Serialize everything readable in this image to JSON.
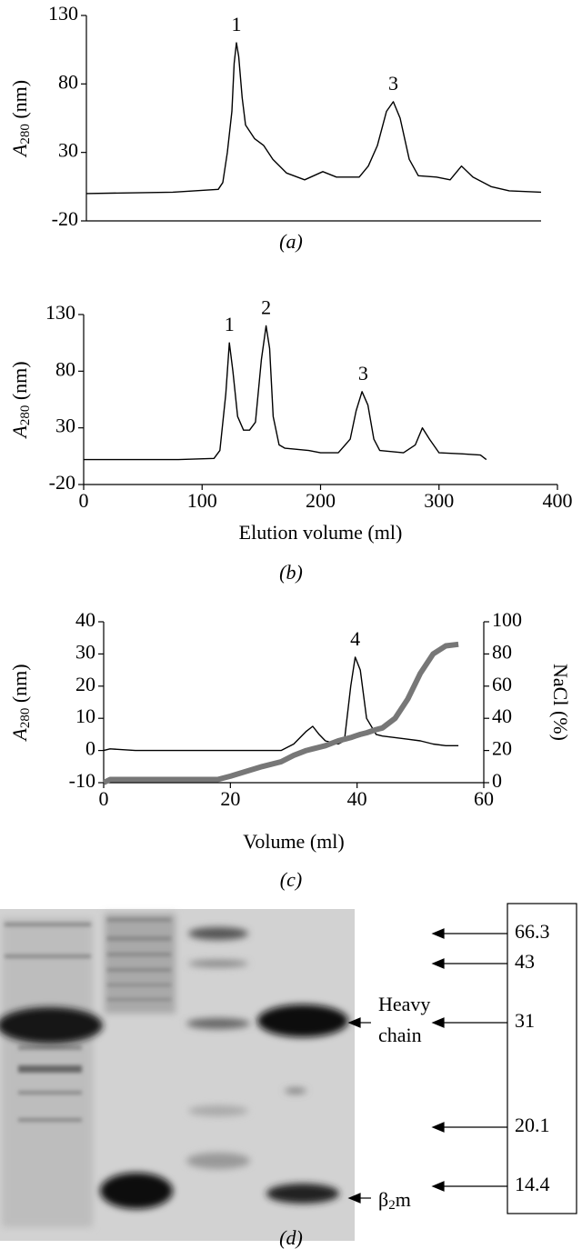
{
  "chart_data": [
    {
      "type": "line",
      "caption": "(a)",
      "y_label": [
        "A",
        "280",
        " (nm)"
      ],
      "xlim": [
        0,
        400
      ],
      "ylim": [
        -20,
        130
      ],
      "yticks": [
        -20,
        30,
        80,
        130
      ],
      "x": [
        0,
        76,
        116,
        120,
        124,
        128,
        130,
        132,
        134,
        137,
        140,
        148,
        156,
        164,
        176,
        192,
        208,
        220,
        240,
        248,
        256,
        264,
        270,
        276,
        284,
        292,
        308,
        320,
        330,
        340,
        356,
        372,
        400
      ],
      "series": [
        {
          "color": "#000000",
          "values": [
            0,
            1,
            3,
            8,
            30,
            60,
            95,
            110,
            100,
            70,
            50,
            40,
            35,
            25,
            15,
            10,
            16,
            12,
            12,
            20,
            35,
            60,
            67,
            55,
            25,
            13,
            12,
            10,
            20,
            12,
            5,
            2,
            1
          ]
        }
      ],
      "annotations": [
        {
          "text": "1",
          "x": 132,
          "y": 110
        },
        {
          "text": "3",
          "x": 270,
          "y": 67
        }
      ]
    },
    {
      "type": "line",
      "caption": "(b)",
      "y_label": [
        "A",
        "280",
        " (nm)"
      ],
      "x_label": "Elution volume (ml)",
      "xlim": [
        0,
        400
      ],
      "xticks": [
        0,
        100,
        200,
        300,
        400
      ],
      "ylim": [
        -20,
        130
      ],
      "yticks": [
        -20,
        30,
        80,
        130
      ],
      "x": [
        0,
        80,
        110,
        115,
        120,
        123,
        126,
        130,
        135,
        140,
        145,
        150,
        154,
        157,
        160,
        165,
        170,
        190,
        200,
        215,
        225,
        230,
        235,
        240,
        245,
        250,
        270,
        280,
        286,
        292,
        300,
        320,
        335,
        340
      ],
      "series": [
        {
          "color": "#000000",
          "values": [
            2,
            2,
            3,
            10,
            60,
            105,
            80,
            40,
            28,
            28,
            35,
            90,
            120,
            100,
            40,
            15,
            12,
            10,
            8,
            8,
            20,
            45,
            62,
            50,
            20,
            10,
            8,
            15,
            30,
            20,
            8,
            7,
            6,
            2
          ]
        }
      ],
      "annotations": [
        {
          "text": "1",
          "x": 123,
          "y": 105
        },
        {
          "text": "2",
          "x": 154,
          "y": 120
        },
        {
          "text": "3",
          "x": 236,
          "y": 62
        }
      ]
    },
    {
      "type": "line",
      "caption": "(c)",
      "y_label": [
        "A",
        "280",
        " (nm)"
      ],
      "x_label": "Volume (ml)",
      "y2_label": "NaCl (%)",
      "xlim": [
        0,
        60
      ],
      "xticks": [
        0,
        20,
        40,
        60
      ],
      "ylim": [
        -10,
        40
      ],
      "yticks": [
        -10,
        0,
        10,
        20,
        30,
        40
      ],
      "y2lim": [
        0,
        100
      ],
      "y2ticks": [
        0,
        20,
        40,
        60,
        80,
        100
      ],
      "x": [
        0,
        1,
        5,
        18,
        20,
        25,
        28,
        30,
        32,
        33,
        34,
        35,
        37,
        38,
        39,
        39.7,
        40.5,
        41.5,
        43,
        44,
        46,
        48,
        50,
        52,
        54,
        56
      ],
      "series": [
        {
          "color": "#000000",
          "values": [
            0,
            0.5,
            0,
            0,
            0,
            0,
            0,
            2,
            6,
            7.5,
            5,
            3,
            2,
            3,
            20,
            29,
            25,
            10,
            5,
            4.5,
            4,
            3.5,
            3,
            2,
            1.5,
            1.5
          ]
        },
        {
          "color": "#777777",
          "axis": "y2",
          "values": [
            0,
            2,
            2,
            2,
            4,
            10,
            13,
            17,
            20,
            21,
            22,
            23,
            26,
            27,
            28,
            29,
            30,
            31,
            33,
            34,
            40,
            52,
            68,
            80,
            85,
            86
          ]
        }
      ],
      "annotations": [
        {
          "text": "4",
          "x": 39.7,
          "y": 29
        }
      ]
    }
  ],
  "gel": {
    "heavy_chain": [
      "Heavy",
      "chain"
    ],
    "beta2m": [
      "β",
      "2",
      "m"
    ],
    "markers": [
      "66.3",
      "43",
      "31",
      "20.1",
      "14.4"
    ],
    "caption": "(d)"
  }
}
